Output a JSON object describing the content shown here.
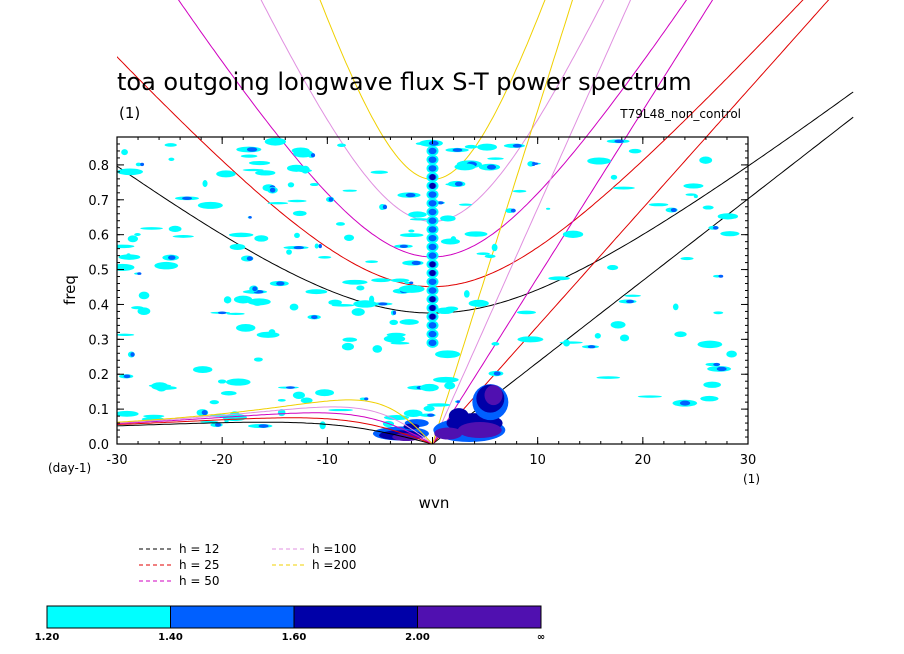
{
  "chart_data": {
    "type": "heatmap",
    "title": "toa outgoing longwave flux S-T power spectrum",
    "subtitle_left": "(1)",
    "subtitle_right": "T79L48_non_control",
    "xlabel": "wvn",
    "ylabel": "freq",
    "x_unit_label": "(1)",
    "y_unit_label": "(day-1)",
    "xlim": [
      -30,
      30
    ],
    "ylim": [
      0,
      0.88
    ],
    "x_ticks": [
      -30,
      -20,
      -10,
      0,
      10,
      20,
      30
    ],
    "x_tick_labels": [
      "-30",
      "-20",
      "-10",
      "0",
      "10",
      "20",
      "30"
    ],
    "y_ticks": [
      0.0,
      0.1,
      0.2,
      0.3,
      0.4,
      0.5,
      0.6,
      0.7,
      0.8
    ],
    "y_tick_labels": [
      "0.0",
      "0.1",
      "0.2",
      "0.3",
      "0.4",
      "0.5",
      "0.6",
      "0.7",
      "0.8"
    ],
    "dispersion_curves": [
      {
        "label": "h = 12",
        "h": 12,
        "color": "#000000"
      },
      {
        "label": "h = 25",
        "h": 25,
        "color": "#e00000"
      },
      {
        "label": "h = 50",
        "h": 50,
        "color": "#d000c0"
      },
      {
        "label": "h =100",
        "h": 100,
        "color": "#e090e0"
      },
      {
        "label": "h =200",
        "h": 200,
        "color": "#f0d000"
      }
    ],
    "colorbar": {
      "levels": [
        "1.20",
        "1.40",
        "1.60",
        "2.00",
        "∞"
      ],
      "colors": [
        "#00ffff",
        "#0060ff",
        "#0000a8",
        "#5010b0"
      ]
    },
    "features": [
      {
        "name": "wavenumber-0 column",
        "x": 0,
        "y": [
          0.28,
          0.86
        ],
        "level": "1.40-2.00"
      },
      {
        "name": "eastward low-frequency band",
        "x": [
          1,
          7
        ],
        "y": [
          0,
          0.2
        ],
        "level": "2.00+"
      },
      {
        "name": "westward low-frequency band",
        "x": [
          -6,
          -1
        ],
        "y": [
          0,
          0.06
        ],
        "level": "2.00+"
      }
    ]
  }
}
